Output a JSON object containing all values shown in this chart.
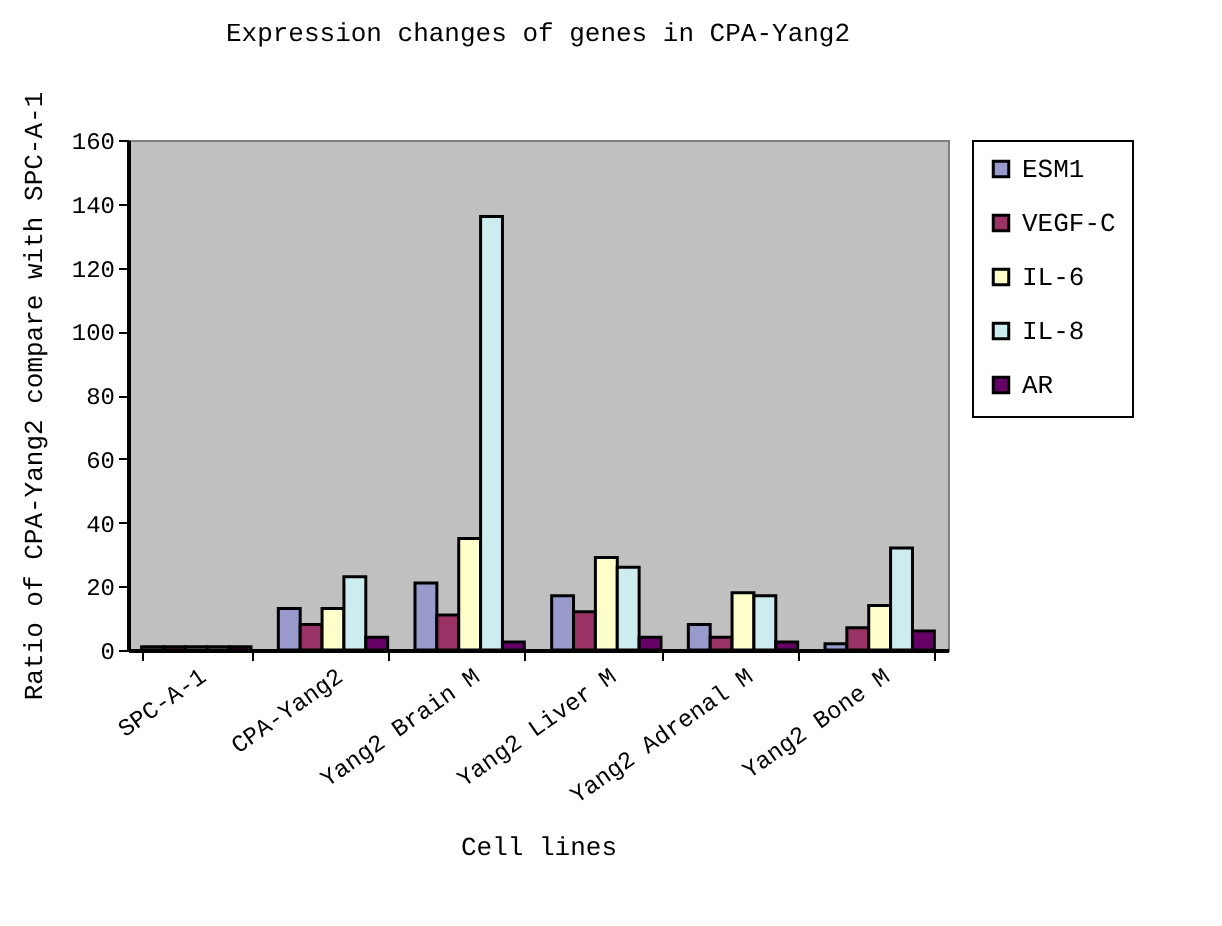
{
  "chart_data": {
    "type": "bar",
    "title": "Expression changes of genes in CPA-Yang2",
    "xlabel": "Cell lines",
    "ylabel": "Ratio of CPA-Yang2 compare with SPC-A-1",
    "categories": [
      "SPC-A-1",
      "CPA-Yang2",
      "Yang2 Brain M",
      "Yang2 Liver M",
      "Yang2 Adrenal M",
      "Yang2 Bone M"
    ],
    "series": [
      {
        "name": "ESM1",
        "color": "#9999cc",
        "values": [
          1,
          13,
          21,
          17,
          8,
          2
        ]
      },
      {
        "name": "VEGF-C",
        "color": "#993366",
        "values": [
          1,
          8,
          11,
          12,
          4,
          7
        ]
      },
      {
        "name": "IL-6",
        "color": "#ffffcc",
        "values": [
          1,
          13,
          35,
          29,
          18,
          14
        ]
      },
      {
        "name": "IL-8",
        "color": "#ccecf0",
        "values": [
          1,
          23,
          136,
          26,
          17,
          32
        ]
      },
      {
        "name": "AR",
        "color": "#660066",
        "values": [
          1,
          4,
          2.5,
          4,
          2.5,
          6
        ]
      }
    ],
    "ylim": [
      0,
      160
    ],
    "yticks": [
      0,
      20,
      40,
      60,
      80,
      100,
      120,
      140,
      160
    ],
    "grid": false,
    "legend": "right"
  }
}
